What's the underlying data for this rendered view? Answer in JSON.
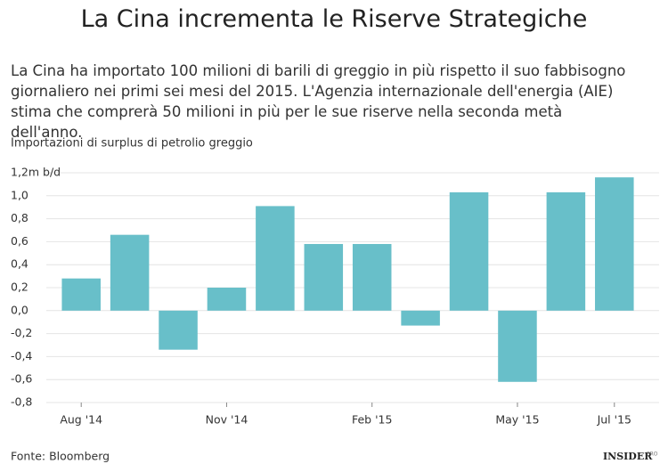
{
  "chart_data": {
    "type": "bar",
    "title": "La Cina incrementa le Riserve Strategiche",
    "description": "La Cina ha importato 100 milioni di barili di greggio in più rispetto il suo fabbisogno giornaliero nei primi sei mesi del 2015. L'Agenzia internazionale dell'energia (AIE) stima che comprerà 50 milioni in più per le sue riserve nella seconda metà dell'anno.",
    "ylabel": "Importazioni di surplus di petrolio greggio",
    "categories": [
      "Aug '14",
      null,
      null,
      "Nov '14",
      null,
      null,
      "Feb '15",
      null,
      null,
      "May '15",
      null,
      "Jul '15"
    ],
    "values": [
      0.28,
      0.66,
      -0.34,
      0.2,
      0.91,
      0.58,
      0.58,
      -0.13,
      1.03,
      -0.62,
      1.03,
      1.16
    ],
    "color": "#68bfc9",
    "ylim": [
      -0.8,
      1.2
    ],
    "yticks": [
      {
        "value": 1.2,
        "label": "1,2m b/d"
      },
      {
        "value": 1,
        "label": "1,0"
      },
      {
        "value": 0.8,
        "label": "0,8"
      },
      {
        "value": 0.6,
        "label": "0,6"
      },
      {
        "value": 0.4,
        "label": "0,4"
      },
      {
        "value": 0.2,
        "label": "0,2"
      },
      {
        "value": 0,
        "label": "0,0"
      },
      {
        "value": -0.2,
        "label": "-0,2"
      },
      {
        "value": -0.4,
        "label": "-0,4"
      },
      {
        "value": -0.6,
        "label": "-0,6"
      },
      {
        "value": -0.8,
        "label": "-0,8"
      }
    ],
    "grid": true,
    "source": "Fonte: Bloomberg",
    "brand": "INSIDER",
    "brand_sub": "PRO"
  }
}
